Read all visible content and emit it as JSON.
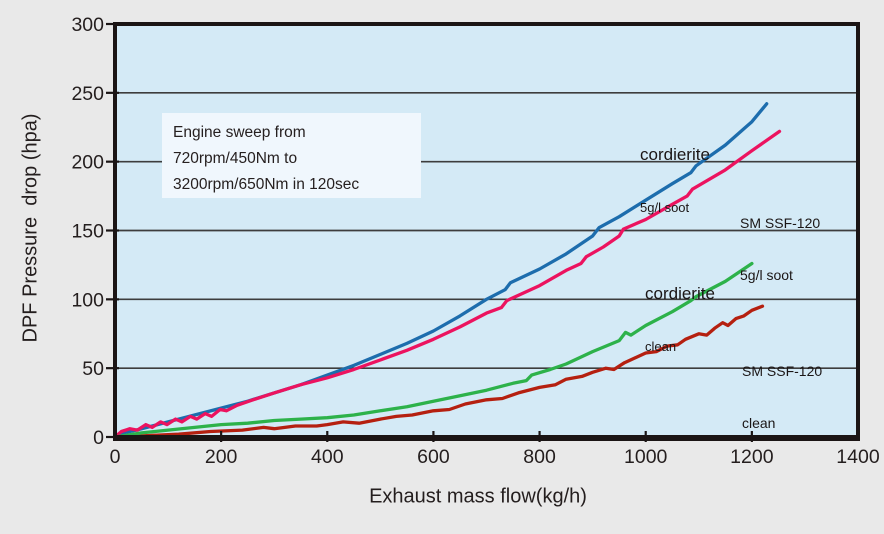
{
  "chart_data": {
    "type": "line",
    "title": "",
    "xlabel": "Exhaust mass flow(kg/h)",
    "ylabel": "DPF Pressure  drop (hpa)",
    "xlim": [
      0,
      1400
    ],
    "ylim": [
      0,
      300
    ],
    "x_ticks": [
      0,
      200,
      400,
      600,
      800,
      1000,
      1200,
      1400
    ],
    "y_ticks": [
      0,
      50,
      100,
      150,
      200,
      250,
      300
    ],
    "grid": "horizontal",
    "legend_position": "inline-curve-labels",
    "plot_bg": "#d4eaf6",
    "frame_color": "#1b1515",
    "grid_color": "#3d3d3d",
    "annotation": {
      "lines": [
        "Engine sweep from",
        "720rpm/450Nm to",
        "3200rpm/650Nm in 120sec"
      ]
    },
    "curve_labels": [
      {
        "title": "cordierite",
        "subtitle": "5g/l soot"
      },
      {
        "title": "SM SSF-120",
        "subtitle": "5g/l soot"
      },
      {
        "title": "cordierite",
        "subtitle": "clean"
      },
      {
        "title": "SM SSF-120",
        "subtitle": "clean"
      }
    ],
    "series": [
      {
        "name": "cordierite 5g/l soot",
        "key": "cordierite-soot",
        "color": "#1d6dad",
        "points": [
          [
            0,
            0
          ],
          [
            15,
            3
          ],
          [
            40,
            5
          ],
          [
            70,
            8
          ],
          [
            100,
            11
          ],
          [
            130,
            14
          ],
          [
            160,
            17
          ],
          [
            200,
            21
          ],
          [
            250,
            26
          ],
          [
            300,
            32
          ],
          [
            350,
            38
          ],
          [
            400,
            45
          ],
          [
            450,
            52
          ],
          [
            500,
            60
          ],
          [
            550,
            68
          ],
          [
            600,
            77
          ],
          [
            650,
            88
          ],
          [
            700,
            100
          ],
          [
            735,
            107
          ],
          [
            745,
            112
          ],
          [
            800,
            122
          ],
          [
            850,
            133
          ],
          [
            900,
            146
          ],
          [
            912,
            152
          ],
          [
            950,
            160
          ],
          [
            1000,
            172
          ],
          [
            1050,
            184
          ],
          [
            1085,
            192
          ],
          [
            1095,
            197
          ],
          [
            1150,
            212
          ],
          [
            1200,
            229
          ],
          [
            1228,
            242
          ]
        ]
      },
      {
        "name": "SM SSF-120 5g/l soot",
        "key": "sm-ssf-120-soot",
        "color": "#ec135f",
        "points": [
          [
            0,
            0
          ],
          [
            12,
            4
          ],
          [
            28,
            6
          ],
          [
            42,
            5
          ],
          [
            58,
            9
          ],
          [
            70,
            7
          ],
          [
            86,
            11
          ],
          [
            98,
            9
          ],
          [
            114,
            13
          ],
          [
            126,
            11
          ],
          [
            142,
            15
          ],
          [
            154,
            13
          ],
          [
            170,
            17
          ],
          [
            182,
            15
          ],
          [
            198,
            20
          ],
          [
            210,
            19
          ],
          [
            230,
            23
          ],
          [
            260,
            27
          ],
          [
            300,
            32
          ],
          [
            350,
            38
          ],
          [
            400,
            43
          ],
          [
            450,
            49
          ],
          [
            500,
            56
          ],
          [
            550,
            63
          ],
          [
            600,
            71
          ],
          [
            650,
            80
          ],
          [
            700,
            90
          ],
          [
            728,
            94
          ],
          [
            738,
            99
          ],
          [
            800,
            110
          ],
          [
            850,
            121
          ],
          [
            878,
            126
          ],
          [
            888,
            131
          ],
          [
            920,
            138
          ],
          [
            950,
            146
          ],
          [
            958,
            151
          ],
          [
            1000,
            158
          ],
          [
            1050,
            169
          ],
          [
            1078,
            175
          ],
          [
            1088,
            180
          ],
          [
            1150,
            194
          ],
          [
            1200,
            208
          ],
          [
            1252,
            222
          ]
        ]
      },
      {
        "name": "SM SSF-120 clean",
        "key": "sm-ssf-120-clean",
        "color": "#b52010",
        "points": [
          [
            0,
            0
          ],
          [
            60,
            1
          ],
          [
            120,
            2
          ],
          [
            180,
            4
          ],
          [
            240,
            5
          ],
          [
            280,
            7
          ],
          [
            300,
            6
          ],
          [
            340,
            8
          ],
          [
            380,
            8
          ],
          [
            400,
            9
          ],
          [
            430,
            11
          ],
          [
            460,
            10
          ],
          [
            500,
            13
          ],
          [
            530,
            15
          ],
          [
            560,
            16
          ],
          [
            600,
            19
          ],
          [
            630,
            20
          ],
          [
            660,
            24
          ],
          [
            700,
            27
          ],
          [
            730,
            28
          ],
          [
            760,
            32
          ],
          [
            800,
            36
          ],
          [
            830,
            38
          ],
          [
            850,
            42
          ],
          [
            880,
            44
          ],
          [
            900,
            47
          ],
          [
            925,
            50
          ],
          [
            940,
            49
          ],
          [
            960,
            54
          ],
          [
            1000,
            61
          ],
          [
            1020,
            62
          ],
          [
            1040,
            66
          ],
          [
            1060,
            67
          ],
          [
            1075,
            71
          ],
          [
            1100,
            75
          ],
          [
            1115,
            74
          ],
          [
            1130,
            79
          ],
          [
            1145,
            83
          ],
          [
            1155,
            81
          ],
          [
            1170,
            86
          ],
          [
            1185,
            88
          ],
          [
            1200,
            92
          ],
          [
            1220,
            95
          ]
        ]
      },
      {
        "name": "cordierite clean",
        "key": "cordierite-clean",
        "color": "#2db24a",
        "points": [
          [
            0,
            0
          ],
          [
            50,
            3
          ],
          [
            100,
            5
          ],
          [
            150,
            7
          ],
          [
            200,
            9
          ],
          [
            250,
            10
          ],
          [
            300,
            12
          ],
          [
            350,
            13
          ],
          [
            400,
            14
          ],
          [
            450,
            16
          ],
          [
            500,
            19
          ],
          [
            550,
            22
          ],
          [
            600,
            26
          ],
          [
            650,
            30
          ],
          [
            700,
            34
          ],
          [
            750,
            39
          ],
          [
            775,
            41
          ],
          [
            785,
            45
          ],
          [
            820,
            49
          ],
          [
            850,
            53
          ],
          [
            900,
            62
          ],
          [
            950,
            70
          ],
          [
            962,
            76
          ],
          [
            972,
            74
          ],
          [
            1000,
            81
          ],
          [
            1050,
            91
          ],
          [
            1085,
            99
          ],
          [
            1095,
            102
          ],
          [
            1150,
            113
          ],
          [
            1200,
            126
          ]
        ]
      }
    ]
  }
}
